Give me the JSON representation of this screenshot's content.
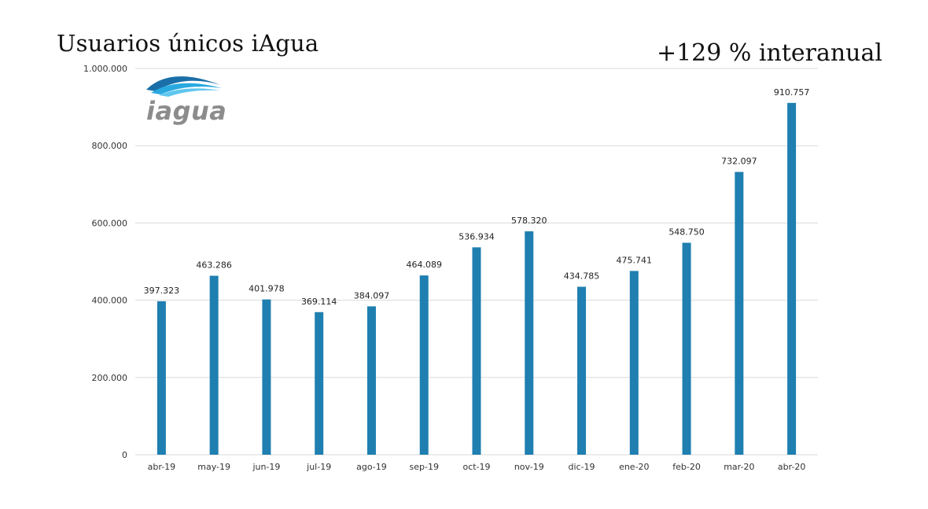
{
  "header": {
    "title": "Usuarios únicos iAgua",
    "annotation": "+129 % interanual"
  },
  "logo": {
    "icon": "wave-icon",
    "text": "iagua",
    "colors": [
      "#1b6fa8",
      "#29a9df",
      "#5fc6ee"
    ]
  },
  "chart_data": {
    "type": "bar",
    "categories": [
      "abr-19",
      "may-19",
      "jun-19",
      "jul-19",
      "ago-19",
      "sep-19",
      "oct-19",
      "nov-19",
      "dic-19",
      "ene-20",
      "feb-20",
      "mar-20",
      "abr-20"
    ],
    "values": [
      397323,
      463286,
      401978,
      369114,
      384097,
      464089,
      536934,
      578320,
      434785,
      475741,
      548750,
      732097,
      910757
    ],
    "data_labels": [
      "397.323",
      "463.286",
      "401.978",
      "369.114",
      "384.097",
      "464.089",
      "536.934",
      "578.320",
      "434.785",
      "475.741",
      "548.750",
      "732.097",
      "910.757"
    ],
    "yticks": [
      0,
      200000,
      400000,
      600000,
      800000,
      1000000
    ],
    "ytick_labels": [
      "0",
      "200.000",
      "400.000",
      "600.000",
      "800.000",
      "1.000.000"
    ],
    "ylim": [
      0,
      1000000
    ],
    "grid": true,
    "bar_color": "#1f7fb0",
    "grid_color": "#d9d9d9"
  }
}
